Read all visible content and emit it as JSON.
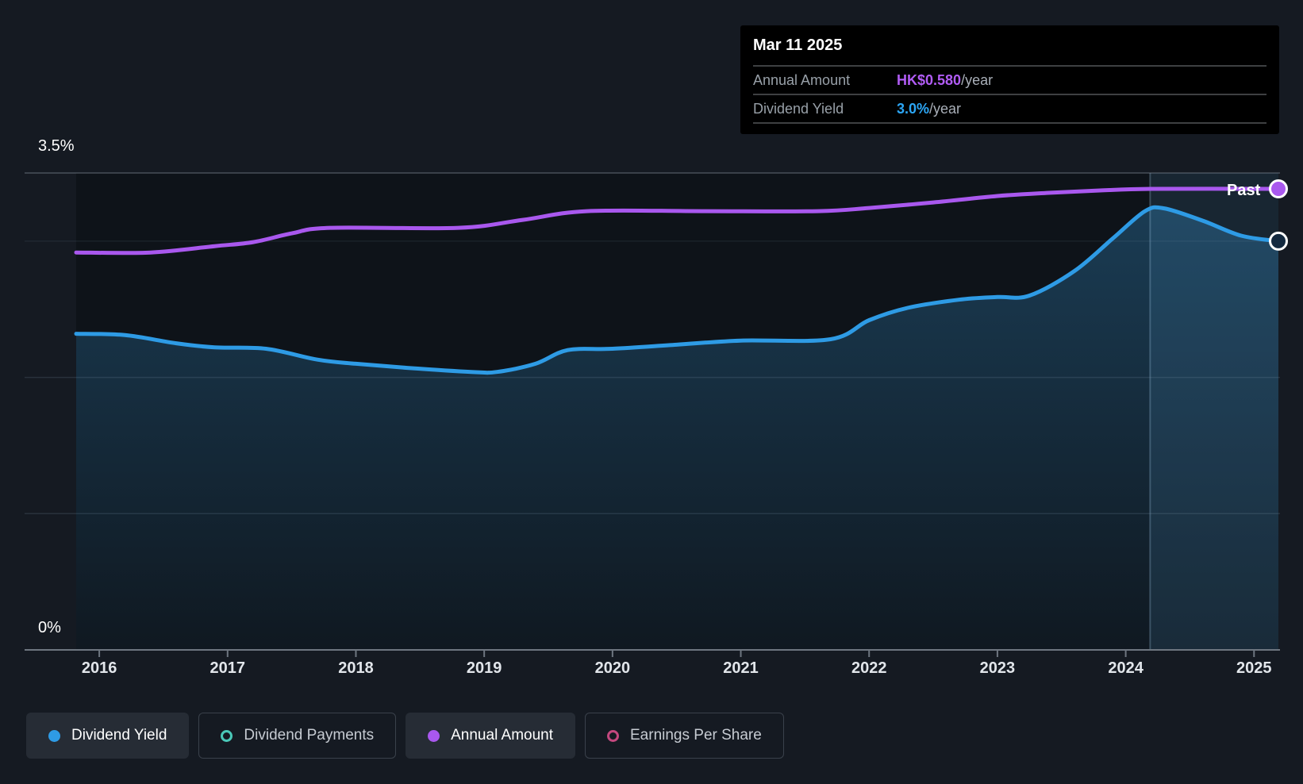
{
  "tooltip": {
    "date": "Mar 11 2025",
    "rows": [
      {
        "label": "Annual Amount",
        "value": "HK$0.580",
        "suffix": "/year",
        "color": "#b15cf5"
      },
      {
        "label": "Dividend Yield",
        "value": "3.0%",
        "suffix": "/year",
        "color": "#2ca6f5"
      }
    ]
  },
  "chart_data": {
    "type": "area",
    "title": "Dividend history (yield and annual amount over time)",
    "x_axis": {
      "start": 2015.82,
      "end": 2025.19,
      "ticks": [
        2016,
        2017,
        2018,
        2019,
        2020,
        2021,
        2022,
        2023,
        2024,
        2025
      ]
    },
    "y_axis": {
      "unit": "%",
      "min": 0,
      "max": 3.5,
      "label_top": "3.5%",
      "label_bottom": "0%",
      "gridlines": [
        3.5,
        3,
        2,
        1,
        0
      ]
    },
    "amount_axis": {
      "unit": "HK$",
      "min": 0,
      "max": 0.6
    },
    "past_band": {
      "label": "Past",
      "start": 2024.19,
      "end": 2025.19
    },
    "series": [
      {
        "name": "Dividend Yield",
        "axis": "percent",
        "color": "#2E9BE5",
        "area": true,
        "end_marker_fill": "#13293f",
        "x": [
          2015.82,
          2016.2,
          2016.6,
          2016.9,
          2017.3,
          2017.7,
          2018.0,
          2018.4,
          2018.9,
          2019.1,
          2019.4,
          2019.65,
          2020.0,
          2020.5,
          2021.0,
          2021.7,
          2022.0,
          2022.3,
          2022.7,
          2023.0,
          2023.25,
          2023.6,
          2023.9,
          2024.15,
          2024.3,
          2024.6,
          2024.9,
          2025.19
        ],
        "values": [
          2.32,
          2.31,
          2.25,
          2.22,
          2.21,
          2.13,
          2.1,
          2.07,
          2.04,
          2.04,
          2.1,
          2.2,
          2.21,
          2.24,
          2.27,
          2.28,
          2.42,
          2.51,
          2.57,
          2.59,
          2.6,
          2.78,
          3.02,
          3.22,
          3.24,
          3.15,
          3.04,
          3.0
        ]
      },
      {
        "name": "Annual Amount",
        "axis": "amount",
        "color": "#A958EE",
        "area": false,
        "end_marker_fill": "#A958EE",
        "x": [
          2015.82,
          2016.4,
          2016.9,
          2017.2,
          2017.5,
          2017.8,
          2018.8,
          2019.3,
          2019.8,
          2020.7,
          2021.6,
          2022.0,
          2022.5,
          2023.0,
          2023.4,
          2023.8,
          2024.2,
          2025.19
        ],
        "values": [
          0.5,
          0.5,
          0.508,
          0.513,
          0.524,
          0.531,
          0.531,
          0.541,
          0.552,
          0.552,
          0.552,
          0.556,
          0.563,
          0.571,
          0.575,
          0.578,
          0.58,
          0.58
        ]
      }
    ]
  },
  "legend": [
    {
      "label": "Dividend Yield",
      "color": "#2E9BE5",
      "style": "filled",
      "active": true
    },
    {
      "label": "Dividend Payments",
      "color": "#4AC8B8",
      "style": "ring",
      "active": false
    },
    {
      "label": "Annual Amount",
      "color": "#A958EE",
      "style": "filled",
      "active": true
    },
    {
      "label": "Earnings Per Share",
      "color": "#C3487E",
      "style": "ring",
      "active": false
    }
  ]
}
